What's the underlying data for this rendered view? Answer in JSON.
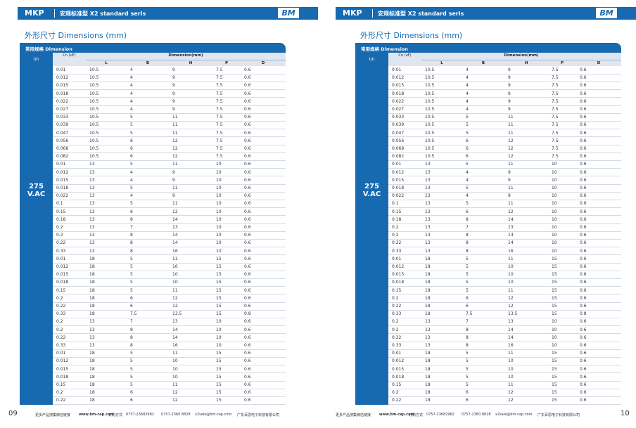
{
  "pages": [
    {
      "header": {
        "series": "MKP",
        "subtitle": "安规标准型 X2 standard seris",
        "logo": "BM"
      },
      "title": "外形尺寸 Dimensions (mm)",
      "table": {
        "tab": "常用规格 Dimension",
        "un": "Un",
        "cn": "Cn (uF)",
        "group": "Dimension(mm)",
        "dims": [
          "L",
          "B",
          "H",
          "P",
          "D"
        ],
        "voltage": [
          "275",
          "V.AC"
        ],
        "rows": [
          [
            0.01,
            10.5,
            4,
            9,
            7.5,
            0.6
          ],
          [
            0.012,
            10.5,
            4,
            9,
            7.5,
            0.6
          ],
          [
            0.015,
            10.5,
            4,
            9,
            7.5,
            0.6
          ],
          [
            0.018,
            10.5,
            4,
            9,
            7.5,
            0.6
          ],
          [
            0.022,
            10.5,
            4,
            9,
            7.5,
            0.6
          ],
          [
            0.027,
            10.5,
            4,
            9,
            7.5,
            0.6
          ],
          [
            0.033,
            10.5,
            5,
            11,
            7.5,
            0.6
          ],
          [
            0.039,
            10.5,
            5,
            11,
            7.5,
            0.6
          ],
          [
            0.047,
            10.5,
            5,
            11,
            7.5,
            0.6
          ],
          [
            0.056,
            10.5,
            6,
            12,
            7.5,
            0.6
          ],
          [
            0.068,
            10.5,
            6,
            12,
            7.5,
            0.6
          ],
          [
            0.082,
            10.5,
            6,
            12,
            7.5,
            0.6
          ],
          [
            0.01,
            13,
            5,
            11,
            10,
            0.6
          ],
          [
            0.012,
            13,
            4,
            9,
            10,
            0.6
          ],
          [
            0.015,
            13,
            4,
            9,
            10,
            0.6
          ],
          [
            0.018,
            13,
            5,
            11,
            10,
            0.6
          ],
          [
            0.022,
            13,
            4,
            9,
            10,
            0.6
          ],
          [
            0.1,
            13,
            5,
            11,
            10,
            0.6
          ],
          [
            0.15,
            13,
            6,
            12,
            10,
            0.6
          ],
          [
            0.18,
            13,
            8,
            14,
            10,
            0.6
          ],
          [
            0.2,
            13,
            7,
            13,
            10,
            0.6
          ],
          [
            0.2,
            13,
            8,
            14,
            10,
            0.6
          ],
          [
            0.22,
            13,
            8,
            14,
            10,
            0.6
          ],
          [
            0.33,
            13,
            8,
            16,
            10,
            0.6
          ],
          [
            0.01,
            18,
            5,
            11,
            15,
            0.6
          ],
          [
            0.012,
            18,
            5,
            10,
            15,
            0.6
          ],
          [
            0.015,
            18,
            5,
            10,
            15,
            0.6
          ],
          [
            0.018,
            18,
            5,
            10,
            15,
            0.6
          ],
          [
            0.15,
            18,
            5,
            11,
            15,
            0.6
          ],
          [
            0.2,
            18,
            6,
            12,
            15,
            0.6
          ],
          [
            0.22,
            18,
            6,
            12,
            15,
            0.6
          ],
          [
            0.33,
            18,
            7.5,
            13.5,
            15,
            0.8
          ],
          [
            0.2,
            13,
            7,
            13,
            10,
            0.6
          ],
          [
            0.2,
            13,
            8,
            14,
            10,
            0.6
          ],
          [
            0.22,
            13,
            8,
            14,
            10,
            0.6
          ],
          [
            0.33,
            13,
            8,
            16,
            10,
            0.6
          ],
          [
            0.01,
            18,
            5,
            11,
            15,
            0.6
          ],
          [
            0.012,
            18,
            5,
            10,
            15,
            0.6
          ],
          [
            0.015,
            18,
            5,
            10,
            15,
            0.6
          ],
          [
            0.018,
            18,
            5,
            10,
            15,
            0.6
          ],
          [
            0.15,
            18,
            5,
            11,
            15,
            0.6
          ],
          [
            0.2,
            18,
            6,
            12,
            15,
            0.6
          ],
          [
            0.22,
            18,
            6,
            12,
            15,
            0.6
          ]
        ]
      },
      "footer": [
        "更多产品搜集微信链接",
        "www.bm-cap.com",
        "订购方式",
        "0757-23682982",
        "0757-2360 8828",
        "x2sale@bm-cap.com",
        "广东百思电子科技有限公司"
      ],
      "page_number": "09"
    },
    {
      "header": {
        "series": "MKP",
        "subtitle": "安规标准型 X2 standard seris",
        "logo": "BM"
      },
      "title": "外形尺寸 Dimensions (mm)",
      "table": {
        "tab": "常用规格 Dimension",
        "un": "Un",
        "cn": "Cn (uF)",
        "group": "Dimension(mm)",
        "dims": [
          "L",
          "B",
          "H",
          "P",
          "D"
        ],
        "voltage": [
          "275",
          "V.AC"
        ],
        "rows": [
          [
            0.01,
            10.5,
            4,
            9,
            7.5,
            0.6
          ],
          [
            0.012,
            10.5,
            4,
            9,
            7.5,
            0.6
          ],
          [
            0.015,
            10.5,
            4,
            9,
            7.5,
            0.6
          ],
          [
            0.018,
            10.5,
            4,
            9,
            7.5,
            0.6
          ],
          [
            0.022,
            10.5,
            4,
            9,
            7.5,
            0.6
          ],
          [
            0.027,
            10.5,
            4,
            9,
            7.5,
            0.6
          ],
          [
            0.033,
            10.5,
            5,
            11,
            7.5,
            0.6
          ],
          [
            0.039,
            10.5,
            5,
            11,
            7.5,
            0.6
          ],
          [
            0.047,
            10.5,
            5,
            11,
            7.5,
            0.6
          ],
          [
            0.056,
            10.5,
            6,
            12,
            7.5,
            0.6
          ],
          [
            0.068,
            10.5,
            6,
            12,
            7.5,
            0.6
          ],
          [
            0.082,
            10.5,
            6,
            12,
            7.5,
            0.6
          ],
          [
            0.01,
            13,
            5,
            11,
            10,
            0.6
          ],
          [
            0.012,
            13,
            4,
            9,
            10,
            0.6
          ],
          [
            0.015,
            13,
            4,
            9,
            10,
            0.6
          ],
          [
            0.018,
            13,
            5,
            11,
            10,
            0.6
          ],
          [
            0.022,
            13,
            4,
            9,
            10,
            0.6
          ],
          [
            0.1,
            13,
            5,
            11,
            10,
            0.6
          ],
          [
            0.15,
            13,
            6,
            12,
            10,
            0.6
          ],
          [
            0.18,
            13,
            8,
            14,
            10,
            0.6
          ],
          [
            0.2,
            13,
            7,
            13,
            10,
            0.6
          ],
          [
            0.2,
            13,
            8,
            14,
            10,
            0.6
          ],
          [
            0.22,
            13,
            8,
            14,
            10,
            0.6
          ],
          [
            0.33,
            13,
            8,
            16,
            10,
            0.6
          ],
          [
            0.01,
            18,
            5,
            11,
            15,
            0.6
          ],
          [
            0.012,
            18,
            5,
            10,
            15,
            0.6
          ],
          [
            0.015,
            18,
            5,
            10,
            15,
            0.6
          ],
          [
            0.018,
            18,
            5,
            10,
            15,
            0.6
          ],
          [
            0.15,
            18,
            5,
            11,
            15,
            0.6
          ],
          [
            0.2,
            18,
            6,
            12,
            15,
            0.6
          ],
          [
            0.22,
            18,
            6,
            12,
            15,
            0.6
          ],
          [
            0.33,
            18,
            7.5,
            13.5,
            15,
            0.8
          ],
          [
            0.2,
            13,
            7,
            13,
            10,
            0.6
          ],
          [
            0.2,
            13,
            8,
            14,
            10,
            0.6
          ],
          [
            0.22,
            13,
            8,
            14,
            10,
            0.6
          ],
          [
            0.33,
            13,
            8,
            16,
            10,
            0.6
          ],
          [
            0.01,
            18,
            5,
            11,
            15,
            0.6
          ],
          [
            0.012,
            18,
            5,
            10,
            15,
            0.6
          ],
          [
            0.015,
            18,
            5,
            10,
            15,
            0.6
          ],
          [
            0.018,
            18,
            5,
            10,
            15,
            0.6
          ],
          [
            0.15,
            18,
            5,
            11,
            15,
            0.6
          ],
          [
            0.2,
            18,
            6,
            12,
            15,
            0.6
          ],
          [
            0.22,
            18,
            6,
            12,
            15,
            0.6
          ]
        ]
      },
      "footer": [
        "更多产品搜集微信链接",
        "www.bm-cap.com",
        "订购方式",
        "0757-23682982",
        "0757-2360 8828",
        "x2sale@bm-cap.com",
        "广东百思电子科技有限公司"
      ],
      "page_number": "10"
    }
  ]
}
